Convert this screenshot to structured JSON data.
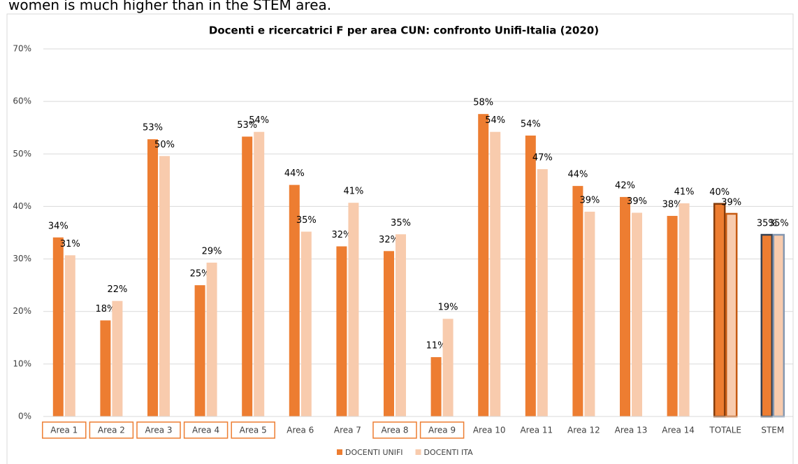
{
  "header_text": "women is much higher than in the STEM area.",
  "chart_data": {
    "type": "bar",
    "title": "Docenti e ricercatrici F per area CUN: confronto Unifi-Italia (2020)",
    "categories": [
      "Area 1",
      "Area 2",
      "Area 3",
      "Area 4",
      "Area 5",
      "Area 6",
      "Area 7",
      "Area 8",
      "Area 9",
      "Area 10",
      "Area 11",
      "Area 12",
      "Area 13",
      "Area 14",
      "TOTALE",
      "STEM"
    ],
    "category_boxed": [
      true,
      true,
      true,
      true,
      true,
      false,
      false,
      true,
      true,
      false,
      false,
      false,
      false,
      false,
      false,
      false
    ],
    "series": [
      {
        "name": "DOCENTI UNIFI",
        "color": "#ed7d31",
        "values": [
          34.1,
          18.3,
          52.8,
          25.0,
          53.3,
          44.1,
          32.4,
          31.5,
          11.3,
          57.6,
          53.5,
          43.9,
          41.8,
          38.2,
          40.5,
          34.6
        ],
        "value_labels": [
          "34%",
          "18%",
          "53%",
          "25%",
          "53%",
          "44%",
          "32%",
          "32%",
          "11%",
          "58%",
          "54%",
          "44%",
          "42%",
          "38%",
          "40%",
          "35%"
        ],
        "outlines": [
          null,
          null,
          null,
          null,
          null,
          null,
          null,
          null,
          null,
          null,
          null,
          null,
          null,
          null,
          "#843c0c",
          "#333f50"
        ]
      },
      {
        "name": "DOCENTI ITA",
        "color": "#f8cbad",
        "values": [
          30.7,
          22.0,
          49.6,
          29.3,
          54.2,
          35.2,
          40.7,
          34.7,
          18.6,
          54.2,
          47.1,
          39.0,
          38.8,
          40.6,
          38.6,
          34.6
        ],
        "value_labels": [
          "31%",
          "22%",
          "50%",
          "29%",
          "54%",
          "35%",
          "41%",
          "35%",
          "19%",
          "54%",
          "47%",
          "39%",
          "39%",
          "41%",
          "39%",
          "35%"
        ],
        "outlines": [
          null,
          null,
          null,
          null,
          null,
          null,
          null,
          null,
          null,
          null,
          null,
          null,
          null,
          null,
          "#c55a11",
          "#8497b0"
        ]
      }
    ],
    "ylim": [
      0,
      70
    ],
    "yticks": [
      {
        "value": 0,
        "label": "0%"
      },
      {
        "value": 10,
        "label": "10%"
      },
      {
        "value": 20,
        "label": "20%"
      },
      {
        "value": 30,
        "label": "30%"
      },
      {
        "value": 40,
        "label": "40%"
      },
      {
        "value": 50,
        "label": "50%"
      },
      {
        "value": 60,
        "label": "60%"
      },
      {
        "value": 70,
        "label": "70%"
      }
    ],
    "grid": true,
    "legend": "bottom"
  }
}
